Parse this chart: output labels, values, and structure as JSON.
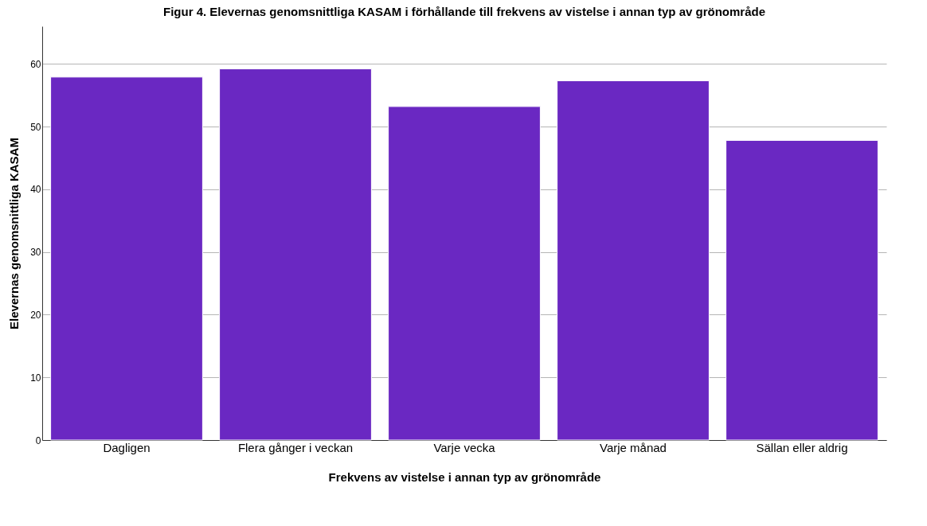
{
  "chart_data": {
    "type": "bar",
    "title": "Figur 4. Elevernas genomsnittliga KASAM i förhållande till frekvens av vistelse i annan typ av grönområde",
    "xlabel": "Frekvens av vistelse i annan typ av grönområde",
    "ylabel": "Elevernas genomsnittliga KASAM",
    "categories": [
      "Dagligen",
      "Flera gånger i veckan",
      "Varje vecka",
      "Varje månad",
      "Sällan eller aldrig"
    ],
    "values": [
      57.9,
      59.2,
      53.2,
      57.3,
      47.8
    ],
    "color": "#6a28c2",
    "ylim": [
      0,
      66
    ],
    "yticks": [
      0,
      10,
      20,
      30,
      40,
      50,
      60
    ],
    "grid": "y"
  }
}
